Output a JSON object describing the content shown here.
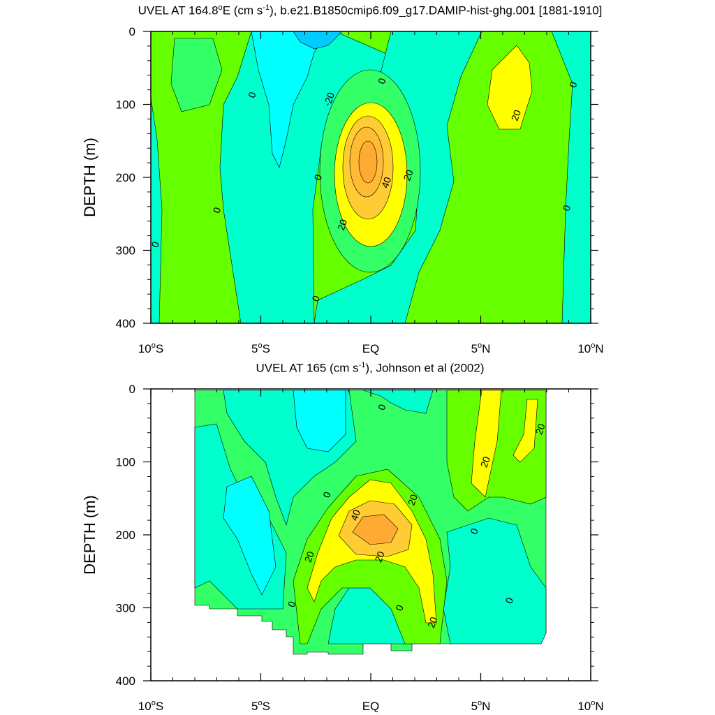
{
  "colors": {
    "cyan": "#00ffff",
    "aqua": "#00ffcc",
    "skyblue": "#00ccff",
    "blue": "#00aaff",
    "green": "#66ff00",
    "lightgreen": "#33ff66",
    "yellow": "#ffff00",
    "lightorange": "#ffcc33",
    "orange": "#ffaa33"
  },
  "chart_data": [
    {
      "type": "contour",
      "title_prefix": "UVEL AT 164.8",
      "title_deg": "o",
      "title_mid": "E (cm s",
      "title_sup": "-1",
      "title_suffix": "), b.e21.B1850cmip6.f09_g17.DAMIP-hist-ghg.001 [1881-1910]",
      "ylabel": "DEPTH (m)",
      "x_ticks": [
        {
          "value": -10,
          "label": "10",
          "sup": "o",
          "hemi": "S"
        },
        {
          "value": -5,
          "label": "5",
          "sup": "o",
          "hemi": "S"
        },
        {
          "value": 0,
          "label": "EQ",
          "sup": "",
          "hemi": ""
        },
        {
          "value": 5,
          "label": "5",
          "sup": "o",
          "hemi": "N"
        },
        {
          "value": 10,
          "label": "10",
          "sup": "o",
          "hemi": "N"
        }
      ],
      "y_ticks": [
        0,
        100,
        200,
        300,
        400
      ],
      "xlim": [
        -10,
        10
      ],
      "ylim": [
        0,
        400
      ],
      "contour_interval": 10,
      "contour_labels": [
        {
          "text": "-20",
          "lat": -1.9,
          "depth": 93
        },
        {
          "text": "0",
          "lat": 0.5,
          "depth": 68
        },
        {
          "text": "0",
          "lat": -5.4,
          "depth": 87
        },
        {
          "text": "0",
          "lat": -7.0,
          "depth": 245
        },
        {
          "text": "0",
          "lat": -9.8,
          "depth": 292
        },
        {
          "text": "0",
          "lat": -2.4,
          "depth": 200
        },
        {
          "text": "0",
          "lat": -2.5,
          "depth": 366
        },
        {
          "text": "40",
          "lat": 0.7,
          "depth": 207
        },
        {
          "text": "20",
          "lat": 1.7,
          "depth": 197
        },
        {
          "text": "20",
          "lat": -1.3,
          "depth": 265
        },
        {
          "text": "20",
          "lat": 6.6,
          "depth": 115
        },
        {
          "text": "0",
          "lat": 9.2,
          "depth": 73
        },
        {
          "text": "0",
          "lat": 8.9,
          "depth": 242
        }
      ]
    },
    {
      "type": "contour",
      "title_prefix": "UVEL AT 165 (cm s",
      "title_deg": "",
      "title_mid": "",
      "title_sup": "-1",
      "title_suffix": "), Johnson et al (2002)",
      "ylabel": "DEPTH (m)",
      "x_ticks": [
        {
          "value": -10,
          "label": "10",
          "sup": "o",
          "hemi": "S"
        },
        {
          "value": -5,
          "label": "5",
          "sup": "o",
          "hemi": "S"
        },
        {
          "value": 0,
          "label": "EQ",
          "sup": "",
          "hemi": ""
        },
        {
          "value": 5,
          "label": "5",
          "sup": "o",
          "hemi": "N"
        },
        {
          "value": 10,
          "label": "10",
          "sup": "o",
          "hemi": "N"
        }
      ],
      "y_ticks": [
        0,
        100,
        200,
        300,
        400
      ],
      "xlim": [
        -10,
        10
      ],
      "ylim": [
        0,
        400
      ],
      "data_xlim": [
        -8,
        8
      ],
      "contour_interval": 10,
      "contour_labels": [
        {
          "text": "0",
          "lat": 0.5,
          "depth": 25
        },
        {
          "text": "20",
          "lat": 7.7,
          "depth": 55
        },
        {
          "text": "20",
          "lat": 5.2,
          "depth": 100
        },
        {
          "text": "0",
          "lat": -2.0,
          "depth": 145
        },
        {
          "text": "40",
          "lat": -0.7,
          "depth": 173
        },
        {
          "text": "20",
          "lat": 1.9,
          "depth": 152
        },
        {
          "text": "0",
          "lat": 4.7,
          "depth": 195
        },
        {
          "text": "20",
          "lat": -2.8,
          "depth": 230
        },
        {
          "text": "20",
          "lat": 0.4,
          "depth": 230
        },
        {
          "text": "0",
          "lat": -3.6,
          "depth": 295
        },
        {
          "text": "0",
          "lat": 1.3,
          "depth": 300
        },
        {
          "text": "0",
          "lat": 6.3,
          "depth": 290
        },
        {
          "text": "20",
          "lat": 2.8,
          "depth": 320
        }
      ]
    }
  ]
}
